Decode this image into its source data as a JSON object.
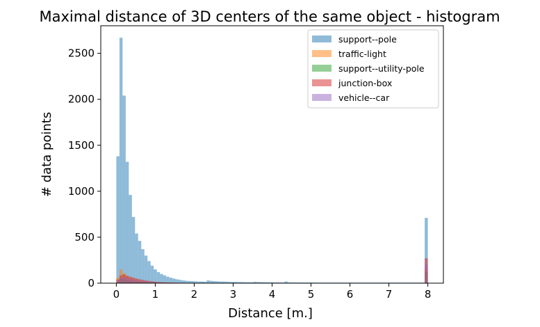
{
  "chart_data": {
    "type": "histogram",
    "title": "Maximal distance of 3D centers of the same object - histogram",
    "xlabel": "Distance [m.]",
    "ylabel": "# data points",
    "xlim": [
      -0.4,
      8.4
    ],
    "ylim": [
      0,
      2800
    ],
    "xticks": [
      0,
      1,
      2,
      3,
      4,
      5,
      6,
      7,
      8
    ],
    "yticks": [
      0,
      500,
      1000,
      1500,
      2000,
      2500
    ],
    "bin_start": 0,
    "bin_width": 0.08,
    "grid": false,
    "legend_position": "top-right",
    "alpha": 0.5,
    "series": [
      {
        "name": "support--pole",
        "color": "#1f77b4",
        "values": [
          1380,
          2670,
          2040,
          1320,
          960,
          720,
          540,
          460,
          370,
          300,
          240,
          190,
          150,
          120,
          100,
          85,
          70,
          60,
          50,
          42,
          36,
          30,
          26,
          24,
          22,
          20,
          18,
          18,
          16,
          30,
          25,
          22,
          20,
          18,
          18,
          16,
          14,
          14,
          13,
          12,
          12,
          11,
          10,
          10,
          15,
          12,
          12,
          11,
          10,
          9,
          9,
          9,
          8,
          8,
          18,
          8,
          8,
          7,
          7,
          7,
          7,
          7,
          7,
          7,
          6,
          6,
          6,
          6,
          6,
          6,
          6,
          6,
          6,
          6,
          6,
          6,
          6,
          6,
          6,
          6,
          6,
          6,
          6,
          6,
          6,
          6,
          6,
          6,
          6,
          6,
          6,
          6,
          6,
          6,
          6,
          6,
          6,
          6,
          6,
          710
        ]
      },
      {
        "name": "traffic-light",
        "color": "#ff7f0e",
        "values": [
          60,
          150,
          110,
          80,
          60,
          50,
          40,
          32,
          26,
          20,
          16,
          12,
          10,
          9,
          8,
          7,
          6,
          5,
          5,
          4,
          4,
          3,
          3,
          3,
          3,
          3,
          2,
          2,
          2,
          2,
          2,
          2,
          2,
          2,
          2,
          2,
          2,
          2,
          2,
          2,
          2,
          2,
          2,
          2,
          2,
          2,
          1,
          1,
          1,
          1,
          1,
          1,
          1,
          1,
          1,
          1,
          1,
          1,
          1,
          1,
          1,
          1,
          1,
          1,
          1,
          1,
          1,
          1,
          1,
          1,
          1,
          1,
          1,
          1,
          1,
          1,
          1,
          1,
          1,
          1,
          1,
          1,
          1,
          1,
          1,
          1,
          1,
          1,
          1,
          1,
          1,
          1,
          1,
          1,
          1,
          1,
          1,
          1,
          1,
          160
        ]
      },
      {
        "name": "support--utility-pole",
        "color": "#2ca02c",
        "values": [
          20,
          50,
          40,
          30,
          25,
          20,
          16,
          13,
          11,
          9,
          8,
          7,
          6,
          5,
          5,
          4,
          4,
          3,
          3,
          3,
          3,
          2,
          2,
          2,
          2,
          2,
          2,
          2,
          2,
          2,
          2,
          2,
          2,
          2,
          2,
          2,
          1,
          1,
          1,
          1,
          1,
          1,
          1,
          1,
          1,
          1,
          1,
          1,
          1,
          1,
          1,
          1,
          1,
          1,
          1,
          1,
          1,
          1,
          1,
          1,
          1,
          1,
          1,
          1,
          1,
          1,
          1,
          1,
          1,
          1,
          1,
          1,
          1,
          1,
          1,
          1,
          1,
          1,
          1,
          1,
          1,
          1,
          1,
          1,
          1,
          1,
          1,
          1,
          1,
          1,
          1,
          1,
          1,
          1,
          1,
          1,
          1,
          1,
          1,
          120
        ]
      },
      {
        "name": "junction-box",
        "color": "#d62728",
        "values": [
          40,
          85,
          95,
          80,
          70,
          60,
          50,
          42,
          36,
          30,
          25,
          20,
          16,
          13,
          11,
          9,
          8,
          7,
          6,
          5,
          5,
          4,
          4,
          3,
          3,
          3,
          3,
          3,
          2,
          2,
          2,
          2,
          2,
          2,
          2,
          2,
          2,
          2,
          2,
          2,
          2,
          2,
          2,
          2,
          2,
          2,
          2,
          2,
          2,
          2,
          1,
          1,
          1,
          1,
          1,
          1,
          1,
          1,
          1,
          1,
          1,
          1,
          1,
          1,
          1,
          1,
          1,
          1,
          1,
          1,
          1,
          1,
          1,
          1,
          1,
          1,
          1,
          1,
          1,
          1,
          1,
          1,
          1,
          1,
          1,
          1,
          1,
          1,
          1,
          1,
          1,
          1,
          1,
          1,
          1,
          1,
          1,
          1,
          1,
          270
        ]
      },
      {
        "name": "vehicle--car",
        "color": "#9467bd",
        "values": [
          30,
          60,
          65,
          55,
          45,
          38,
          32,
          26,
          22,
          18,
          15,
          12,
          10,
          8,
          7,
          6,
          5,
          4,
          4,
          3,
          3,
          3,
          2,
          2,
          2,
          2,
          2,
          2,
          2,
          2,
          2,
          2,
          2,
          2,
          1,
          1,
          1,
          1,
          1,
          1,
          1,
          1,
          1,
          1,
          1,
          1,
          1,
          1,
          1,
          1,
          1,
          1,
          1,
          1,
          1,
          1,
          1,
          1,
          1,
          1,
          1,
          1,
          1,
          1,
          1,
          1,
          1,
          1,
          1,
          1,
          1,
          1,
          1,
          1,
          1,
          1,
          1,
          1,
          1,
          1,
          1,
          1,
          1,
          1,
          1,
          1,
          1,
          1,
          1,
          1,
          1,
          1,
          1,
          1,
          1,
          1,
          1,
          1,
          1,
          200
        ]
      }
    ]
  }
}
